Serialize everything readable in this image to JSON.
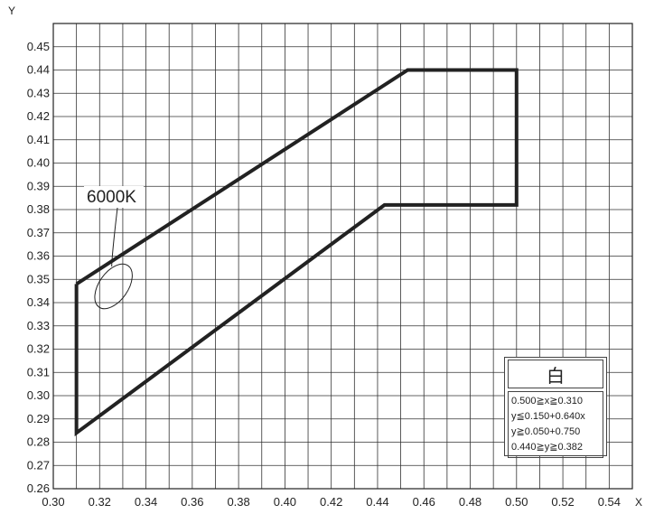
{
  "chart_data": {
    "type": "line",
    "xlabel": "X",
    "ylabel": "Y",
    "xlim": [
      0.3,
      0.55
    ],
    "ylim": [
      0.26,
      0.46
    ],
    "x_ticks": [
      "0.30",
      "0.32",
      "0.34",
      "0.36",
      "0.38",
      "0.40",
      "0.42",
      "0.44",
      "0.46",
      "0.48",
      "0.50",
      "0.52",
      "0.54"
    ],
    "y_ticks": [
      "0.26",
      "0.27",
      "0.28",
      "0.29",
      "0.30",
      "0.31",
      "0.32",
      "0.33",
      "0.34",
      "0.35",
      "0.36",
      "0.37",
      "0.38",
      "0.39",
      "0.40",
      "0.41",
      "0.42",
      "0.43",
      "0.44",
      "0.45"
    ],
    "grid": true,
    "series": [
      {
        "points": [
          {
            "x": 0.31,
            "y": 0.348
          },
          {
            "x": 0.453,
            "y": 0.44
          },
          {
            "x": 0.5,
            "y": 0.44
          },
          {
            "x": 0.5,
            "y": 0.382
          },
          {
            "x": 0.443,
            "y": 0.382
          },
          {
            "x": 0.31,
            "y": 0.284
          },
          {
            "x": 0.31,
            "y": 0.348
          }
        ]
      }
    ],
    "annotation": {
      "label": "6000K",
      "ellipse_center": {
        "x": 0.326,
        "y": 0.347
      }
    },
    "legend": {
      "title": "白",
      "lines": [
        "0.500≧x≧0.310",
        "y≦0.150+0.640x",
        "y≧0.050+0.750",
        "0.440≧y≧0.382"
      ],
      "placement": "bottom-right"
    }
  }
}
